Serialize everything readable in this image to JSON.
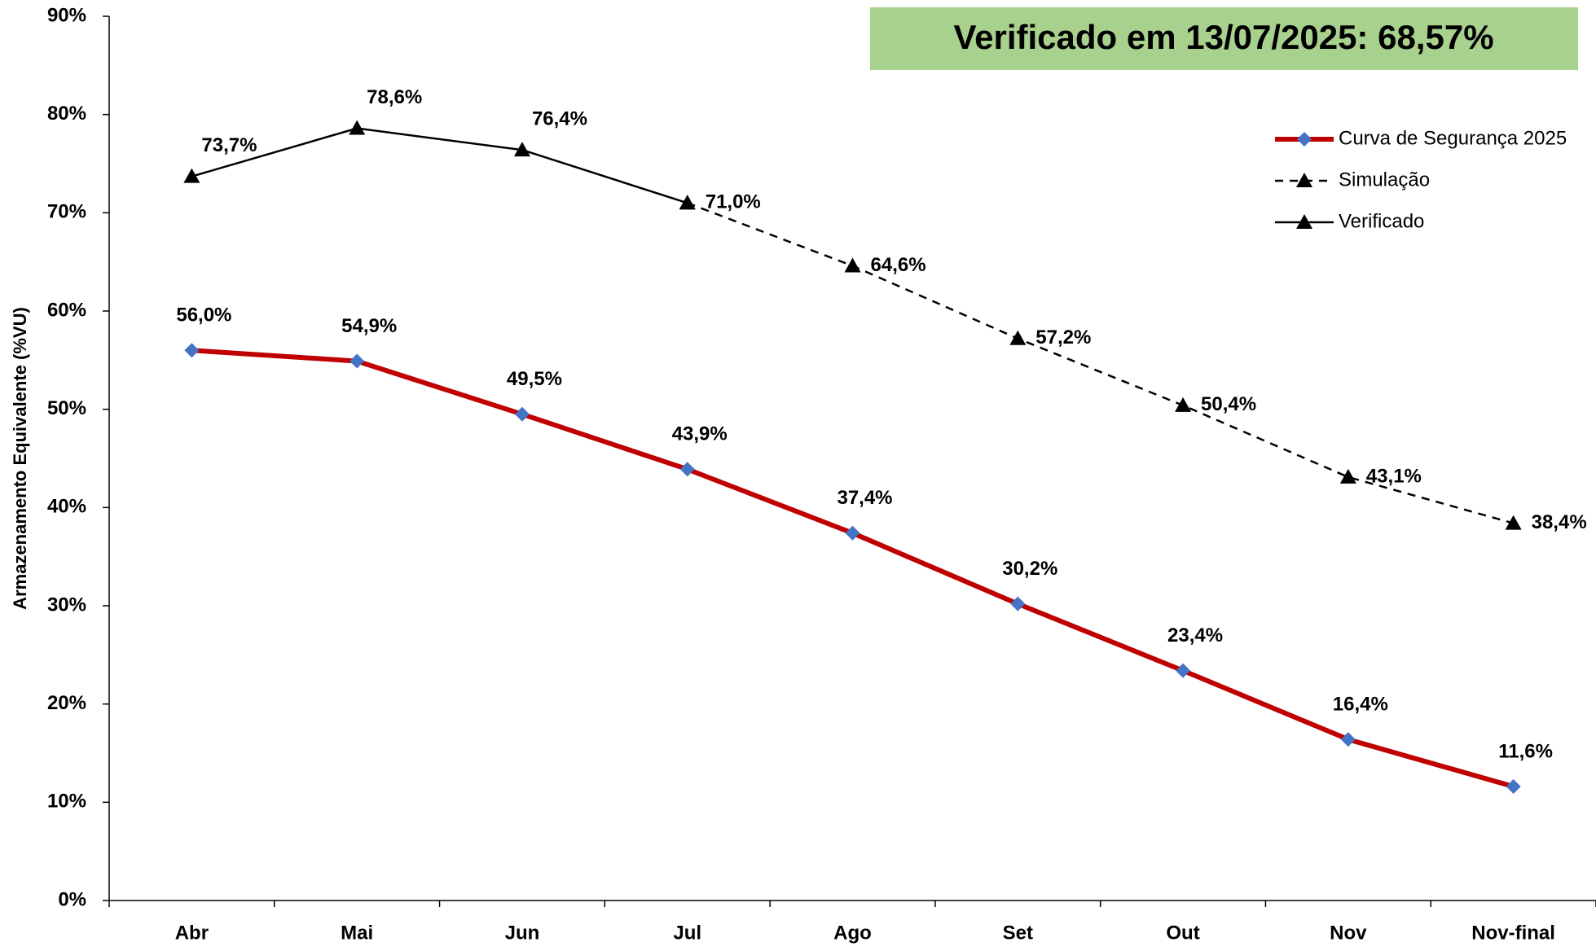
{
  "chart_data": {
    "type": "line",
    "annotation": "Verificado em 13/07/2025: 68,57%",
    "y_label": "Armazenamento Equivalente (%VU)",
    "categories": [
      "Abr",
      "Mai",
      "Jun",
      "Jul",
      "Ago",
      "Set",
      "Out",
      "Nov",
      "Nov-final"
    ],
    "series": [
      {
        "name": "Curva de Segurança 2025",
        "color": "#c00000",
        "marker": "diamond",
        "marker_color": "#4472c4",
        "dash": false,
        "label_color": "#000000",
        "label_pos": "above",
        "values": [
          56.0,
          54.9,
          49.5,
          43.9,
          37.4,
          30.2,
          23.4,
          16.4,
          11.6
        ],
        "value_labels": [
          "56,0%",
          "54,9%",
          "49,5%",
          "43,9%",
          "37,4%",
          "30,2%",
          "23,4%",
          "16,4%",
          "11,6%"
        ]
      },
      {
        "name": "Simulação",
        "color": "#000000",
        "marker": "triangle",
        "marker_color": "#000000",
        "dash": true,
        "label_color": "#c00000",
        "label_pos": "right",
        "values": [
          null,
          null,
          null,
          71.0,
          64.6,
          57.2,
          50.4,
          43.1,
          38.4
        ],
        "value_labels": [
          null,
          null,
          null,
          "71,0%",
          "64,6%",
          "57,2%",
          "50,4%",
          "43,1%",
          "38,4%"
        ]
      },
      {
        "name": "Verificado",
        "color": "#000000",
        "marker": "triangle",
        "marker_color": "#000000",
        "dash": false,
        "label_color": "#c00000",
        "label_pos": "above-right",
        "values": [
          73.7,
          78.6,
          76.4,
          71.0,
          null,
          null,
          null,
          null,
          null
        ],
        "value_labels": [
          "73,7%",
          "78,6%",
          "76,4%",
          null,
          null,
          null,
          null,
          null,
          null
        ]
      }
    ],
    "ylim": [
      0,
      90
    ],
    "yticks": [
      {
        "value": 0,
        "label": "0%"
      },
      {
        "value": 10,
        "label": "10%"
      },
      {
        "value": 20,
        "label": "20%"
      },
      {
        "value": 30,
        "label": "30%"
      },
      {
        "value": 40,
        "label": "40%"
      },
      {
        "value": 50,
        "label": "50%"
      },
      {
        "value": 60,
        "label": "60%"
      },
      {
        "value": 70,
        "label": "70%"
      },
      {
        "value": 80,
        "label": "80%"
      },
      {
        "value": 90,
        "label": "90%"
      }
    ],
    "grid": false
  }
}
